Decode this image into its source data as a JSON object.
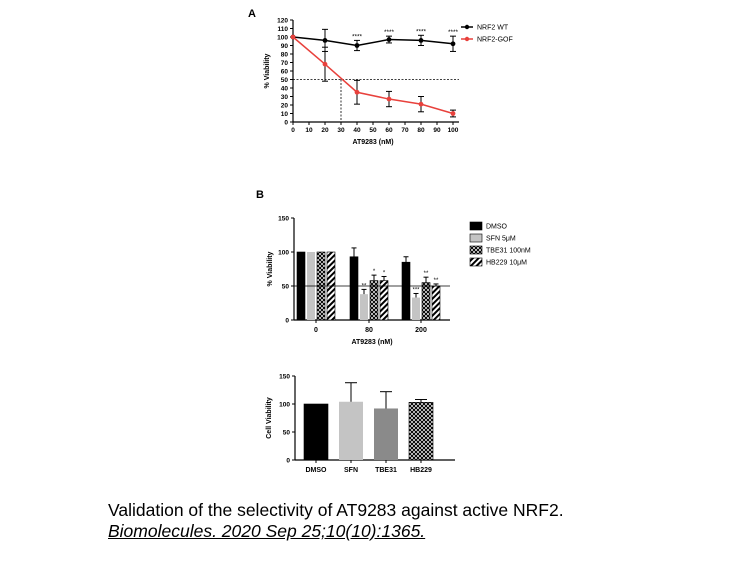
{
  "panel_labels": {
    "a": "A",
    "b": "B"
  },
  "caption": {
    "title": "Validation of the selectivity of AT9283 against active NRF2.",
    "citation": "Biomolecules. 2020 Sep 25;10(10):1365."
  },
  "chart_data": [
    {
      "id": "A",
      "type": "line",
      "xlabel": "AT9283 (nM)",
      "ylabel": "% Viability",
      "xlim": [
        0,
        100
      ],
      "ylim": [
        0,
        120
      ],
      "xticks": [
        0,
        10,
        20,
        30,
        40,
        50,
        60,
        70,
        80,
        90,
        100
      ],
      "yticks": [
        0,
        10,
        20,
        30,
        40,
        50,
        60,
        70,
        80,
        90,
        100,
        110,
        120
      ],
      "reference_line_y": 50,
      "reference_line_x": 30,
      "legend_position": "top-right",
      "series": [
        {
          "name": "NRF2 WT",
          "color": "#000000",
          "x": [
            0,
            20,
            40,
            60,
            80,
            100
          ],
          "y": [
            100,
            96,
            90,
            97,
            96,
            92
          ],
          "err": [
            0,
            13,
            6,
            4,
            6,
            9
          ],
          "annotations": [
            "",
            "",
            "****",
            "****",
            "****",
            "****"
          ]
        },
        {
          "name": "NRF2-GOF",
          "color": "#e8413c",
          "x": [
            0,
            20,
            40,
            60,
            80,
            100
          ],
          "y": [
            100,
            68,
            35,
            27,
            21,
            10
          ],
          "err": [
            0,
            20,
            14,
            9,
            9,
            4
          ],
          "annotations": [
            "",
            "",
            "",
            "",
            "",
            ""
          ]
        }
      ]
    },
    {
      "id": "B-top",
      "type": "bar",
      "xlabel": "AT9283 (nM)",
      "ylabel": "% Viability",
      "categories": [
        "0",
        "80",
        "200"
      ],
      "ylim": [
        0,
        150
      ],
      "yticks": [
        0,
        50,
        100,
        150
      ],
      "reference_line_y": 50,
      "legend_position": "right",
      "series": [
        {
          "name": "DMSO",
          "fill": "solid-black",
          "values": [
            100,
            93,
            85
          ],
          "err": [
            0,
            13,
            8
          ],
          "annotations": [
            "",
            "",
            ""
          ]
        },
        {
          "name": "SFN 5μM",
          "fill": "solid-lightgray",
          "values": [
            100,
            38,
            33
          ],
          "err": [
            0,
            7,
            6
          ],
          "annotations": [
            "",
            "**",
            "***"
          ]
        },
        {
          "name": "TBE31 100nM",
          "fill": "crosshatch",
          "values": [
            100,
            58,
            55
          ],
          "err": [
            0,
            8,
            8
          ],
          "annotations": [
            "",
            "*",
            "**"
          ]
        },
        {
          "name": "HB229 10μM",
          "fill": "diagonal-stripes",
          "values": [
            100,
            58,
            50
          ],
          "err": [
            0,
            6,
            3
          ],
          "annotations": [
            "",
            "*",
            "**"
          ]
        }
      ]
    },
    {
      "id": "B-bottom",
      "type": "bar",
      "xlabel": "",
      "ylabel": "Cell Viability",
      "categories": [
        "DMSO",
        "SFN",
        "TBE31",
        "HB229"
      ],
      "ylim": [
        0,
        150
      ],
      "yticks": [
        0,
        50,
        100,
        150
      ],
      "values": [
        100,
        104,
        92,
        103
      ],
      "err": [
        0,
        34,
        30,
        5
      ],
      "fills": [
        "solid-black",
        "solid-lightgray",
        "solid-gray",
        "crosshatch"
      ]
    }
  ]
}
